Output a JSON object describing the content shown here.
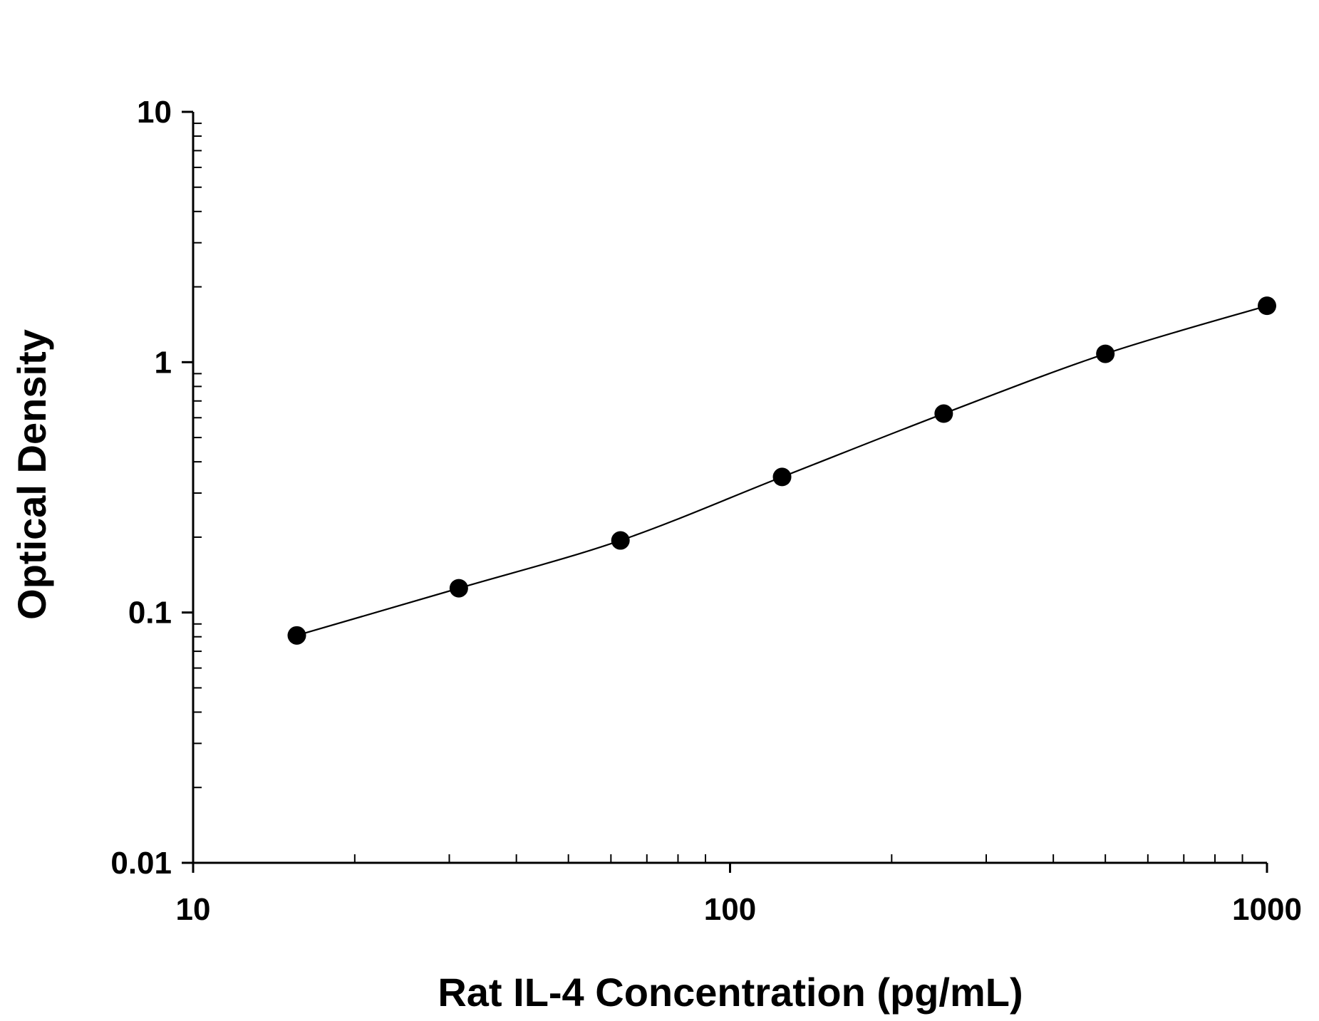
{
  "chart_data": {
    "type": "scatter",
    "title": "",
    "xlabel": "Rat IL-4 Concentration (pg/mL)",
    "ylabel": "Optical Density",
    "x_scale": "log",
    "y_scale": "log",
    "xlim": [
      10,
      1000
    ],
    "ylim": [
      0.01,
      10
    ],
    "x_tick_labels": [
      "10",
      "100",
      "1000"
    ],
    "y_tick_labels": [
      "0.01",
      "0.1",
      "1",
      "10"
    ],
    "grid": false,
    "legend": "none",
    "series": [
      {
        "x": [
          15.6,
          31.25,
          62.5,
          125,
          250,
          500,
          1000
        ],
        "y": [
          0.081,
          0.125,
          0.194,
          0.348,
          0.623,
          1.08,
          1.68
        ],
        "marker": "filled-circle",
        "fit_line": "smooth curve"
      }
    ],
    "colors": {
      "marks": "#000000",
      "axes": "#000000",
      "background": "#ffffff"
    }
  }
}
